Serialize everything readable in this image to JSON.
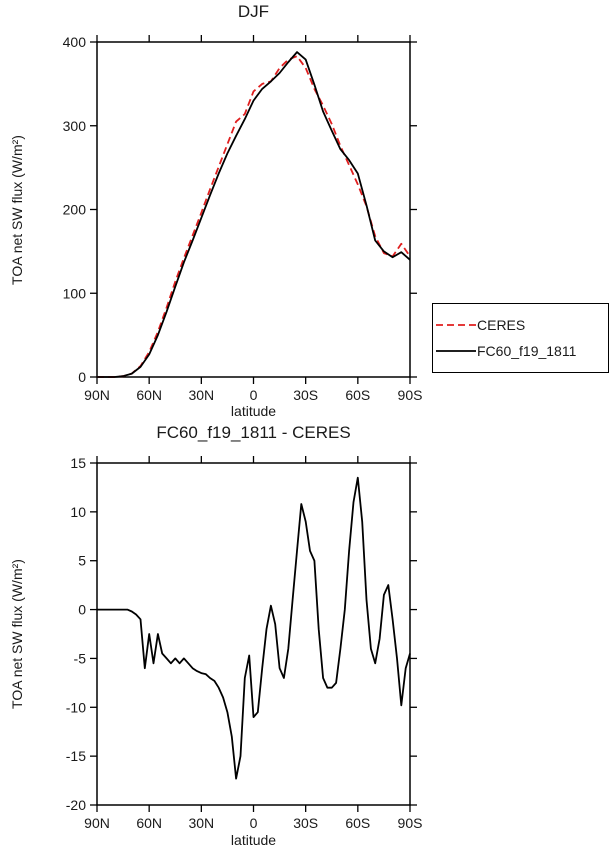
{
  "colors": {
    "ceres_red": "#e01f1f",
    "model_black": "#000000",
    "axis": "#000000",
    "text": "#1a1a1a"
  },
  "chart_data": [
    {
      "type": "line",
      "title": "DJF",
      "xlabel": "latitude",
      "ylabel": "TOA net SW flux (W/m²)",
      "xlim": [
        90,
        -90
      ],
      "ylim": [
        0,
        400
      ],
      "grid": false,
      "legend_position": "outside-right-bottom",
      "xticks": {
        "values": [
          90,
          60,
          30,
          0,
          -30,
          -60,
          -90
        ],
        "labels": [
          "90N",
          "60N",
          "30N",
          "0",
          "30S",
          "60S",
          "90S"
        ]
      },
      "yticks": {
        "values": [
          0,
          100,
          200,
          300,
          400
        ],
        "labels": [
          "0",
          "100",
          "200",
          "300",
          "400"
        ]
      },
      "x": [
        90,
        85,
        80,
        75,
        70,
        65,
        60,
        55,
        50,
        45,
        40,
        35,
        30,
        25,
        20,
        15,
        10,
        5,
        0,
        -5,
        -10,
        -15,
        -20,
        -25,
        -30,
        -35,
        -40,
        -45,
        -50,
        -55,
        -60,
        -65,
        -70,
        -75,
        -80,
        -85,
        -90
      ],
      "series": [
        {
          "name": "CERES",
          "color": "#e01f1f",
          "style": "dashed",
          "dash": "7,4",
          "width": 1.8,
          "values": [
            0,
            0,
            0,
            1,
            4,
            13,
            30,
            54,
            83,
            114,
            142,
            169,
            196,
            224,
            251,
            278,
            305,
            314,
            341,
            350,
            353,
            369,
            379,
            383,
            369,
            344,
            324,
            302,
            276,
            253,
            230,
            204,
            168,
            148,
            144,
            159,
            144
          ]
        },
        {
          "name": "FC60_f19_1811",
          "color": "#000000",
          "style": "solid",
          "dash": "",
          "width": 1.8,
          "values": [
            0,
            0,
            0,
            1,
            4,
            12,
            27,
            50,
            78,
            108,
            137,
            163,
            190,
            217,
            243,
            267,
            288,
            308,
            330,
            344,
            353,
            363,
            376,
            388,
            379,
            349,
            317,
            294,
            272,
            259,
            243,
            205,
            163,
            150,
            143,
            149,
            140
          ]
        }
      ]
    },
    {
      "type": "line",
      "title": "FC60_f19_1811 - CERES",
      "xlabel": "latitude",
      "ylabel": "TOA net SW flux (W/m²)",
      "xlim": [
        90,
        -90
      ],
      "ylim": [
        -20,
        15
      ],
      "grid": false,
      "xticks": {
        "values": [
          90,
          60,
          30,
          0,
          -30,
          -60,
          -90
        ],
        "labels": [
          "90N",
          "60N",
          "30N",
          "0",
          "30S",
          "60S",
          "90S"
        ]
      },
      "yticks": {
        "values": [
          -20,
          -15,
          -10,
          -5,
          0,
          5,
          10,
          15
        ],
        "labels": [
          "-20",
          "-15",
          "-10",
          "-5",
          "0",
          "5",
          "10",
          "15"
        ]
      },
      "x": [
        90,
        87.5,
        85,
        82.5,
        80,
        77.5,
        75,
        72.5,
        70,
        67.5,
        65,
        62.5,
        60,
        57.5,
        55,
        52.5,
        50,
        47.5,
        45,
        42.5,
        40,
        37.5,
        35,
        32.5,
        30,
        27.5,
        25,
        22.5,
        20,
        17.5,
        15,
        12.5,
        10,
        7.5,
        5,
        2.5,
        0,
        -2.5,
        -5,
        -7.5,
        -10,
        -12.5,
        -15,
        -17.5,
        -20,
        -22.5,
        -25,
        -27.5,
        -30,
        -32.5,
        -35,
        -37.5,
        -40,
        -42.5,
        -45,
        -47.5,
        -50,
        -52.5,
        -55,
        -57.5,
        -60,
        -62.5,
        -65,
        -67.5,
        -70,
        -72.5,
        -75,
        -77.5,
        -80,
        -82.5,
        -85,
        -87.5,
        -90
      ],
      "series": [
        {
          "name": "FC60_f19_1811 - CERES",
          "color": "#000000",
          "style": "solid",
          "dash": "",
          "width": 1.8,
          "values": [
            0,
            0,
            0,
            0,
            0,
            0,
            0,
            0,
            -0.2,
            -0.5,
            -1,
            -6,
            -2.5,
            -5.5,
            -2.5,
            -4.5,
            -5,
            -5.5,
            -5,
            -5.5,
            -5,
            -5.5,
            -6,
            -6.3,
            -6.5,
            -6.6,
            -7,
            -7.3,
            -8,
            -9,
            -10.5,
            -13,
            -17.3,
            -15,
            -7,
            -4.7,
            -11,
            -10.5,
            -6,
            -2,
            0.4,
            -1.5,
            -6,
            -7,
            -4,
            1,
            6,
            10.8,
            9,
            6,
            5,
            -2,
            -7,
            -8,
            -8,
            -7.5,
            -4,
            0,
            6,
            11,
            13.5,
            9,
            1,
            -4,
            -5.5,
            -3,
            1.5,
            2.5,
            -1,
            -5,
            -9.8,
            -6,
            -4.5
          ]
        }
      ]
    }
  ]
}
